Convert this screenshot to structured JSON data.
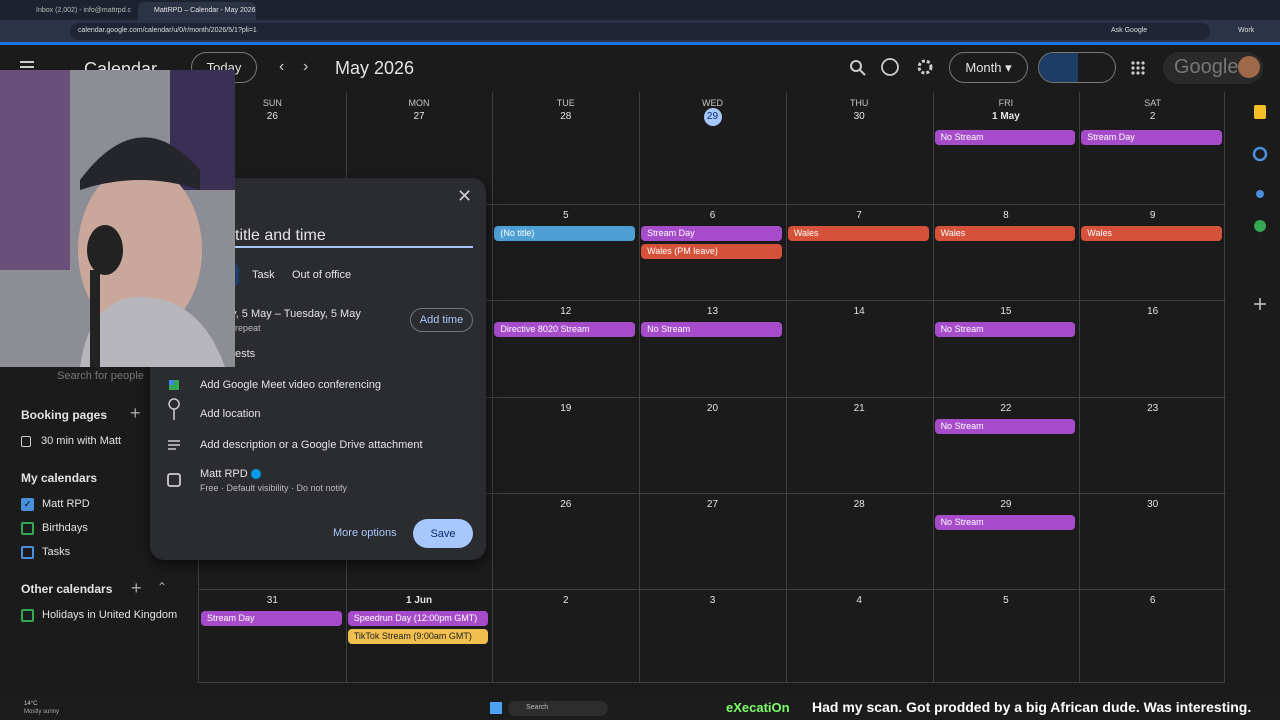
{
  "browser": {
    "tabs": [
      "Inbox (2,002) - info@mattrpd.c",
      "MattRPD – Calendar - May 2026"
    ],
    "url": "calendar.google.com/calendar/u/0/r/month/2026/5/1?pli=1",
    "ask": "Ask Google",
    "profile": "Work"
  },
  "header": {
    "app": "Calendar",
    "today": "Today",
    "period": "May 2026",
    "view": "Month",
    "brand": "Google"
  },
  "calendar": {
    "weekdays": [
      "SUN",
      "MON",
      "TUE",
      "WED",
      "THU",
      "FRI",
      "SAT"
    ],
    "weeks": [
      {
        "days": [
          {
            "label": "26",
            "events": []
          },
          {
            "label": "27",
            "events": []
          },
          {
            "label": "28",
            "events": []
          },
          {
            "label": "29",
            "today": true,
            "events": []
          },
          {
            "label": "30",
            "events": []
          },
          {
            "label": "1 May",
            "events": [
              {
                "title": "No Stream",
                "color": "#a64ccb"
              }
            ]
          },
          {
            "label": "2",
            "events": [
              {
                "title": "Stream Day",
                "color": "#a64ccb"
              }
            ]
          }
        ]
      },
      {
        "days": [
          {
            "label": null,
            "events": []
          },
          {
            "label": null,
            "events": []
          },
          {
            "label": "5",
            "events": [
              {
                "title": "(No title)",
                "color": "#4e9fd6"
              }
            ]
          },
          {
            "label": "6",
            "events": [
              {
                "title": "Stream Day",
                "color": "#a64ccb"
              },
              {
                "title": "Wales (PM leave)",
                "color": "#d6513a"
              }
            ]
          },
          {
            "label": "7",
            "events": [
              {
                "title": "Wales",
                "color": "#d6513a"
              }
            ]
          },
          {
            "label": "8",
            "events": [
              {
                "title": "Wales",
                "color": "#d6513a"
              }
            ]
          },
          {
            "label": "9",
            "events": [
              {
                "title": "Wales",
                "color": "#d6513a"
              }
            ]
          }
        ]
      },
      {
        "days": [
          {
            "label": null,
            "events": []
          },
          {
            "label": null,
            "events": []
          },
          {
            "label": "12",
            "events": [
              {
                "title": "Directive 8020 Stream",
                "color": "#a64ccb"
              }
            ]
          },
          {
            "label": "13",
            "events": [
              {
                "title": "No Stream",
                "color": "#a64ccb"
              }
            ]
          },
          {
            "label": "14",
            "events": []
          },
          {
            "label": "15",
            "events": [
              {
                "title": "No Stream",
                "color": "#a64ccb"
              }
            ]
          },
          {
            "label": "16",
            "events": []
          }
        ]
      },
      {
        "days": [
          {
            "label": null,
            "events": []
          },
          {
            "label": null,
            "events": []
          },
          {
            "label": "19",
            "events": []
          },
          {
            "label": "20",
            "events": []
          },
          {
            "label": "21",
            "events": []
          },
          {
            "label": "22",
            "events": [
              {
                "title": "No Stream",
                "color": "#a64ccb"
              }
            ]
          },
          {
            "label": "23",
            "events": []
          }
        ]
      },
      {
        "days": [
          {
            "label": null,
            "events": []
          },
          {
            "label": null,
            "events": []
          },
          {
            "label": "26",
            "events": []
          },
          {
            "label": "27",
            "events": []
          },
          {
            "label": "28",
            "events": []
          },
          {
            "label": "29",
            "events": [
              {
                "title": "No Stream",
                "color": "#a64ccb"
              }
            ]
          },
          {
            "label": "30",
            "events": []
          }
        ]
      },
      {
        "days": [
          {
            "label": "31",
            "events": [
              {
                "title": "Stream Day",
                "color": "#a64ccb"
              }
            ]
          },
          {
            "label": "1 Jun",
            "events": [
              {
                "title": "Speedrun Day (12:00pm GMT)",
                "color": "#a64ccb"
              },
              {
                "title": "TikTok Stream (9:00am GMT)",
                "color": "#efc04f"
              }
            ]
          },
          {
            "label": "2",
            "events": []
          },
          {
            "label": "3",
            "events": []
          },
          {
            "label": "4",
            "events": []
          },
          {
            "label": "5",
            "events": []
          },
          {
            "label": "6",
            "events": []
          }
        ]
      }
    ]
  },
  "sidebar": {
    "search": "Search for people",
    "booking": "Booking pages",
    "booking_item": "30 min with Matt",
    "my_calendars": "My calendars",
    "calendars": [
      {
        "name": "Matt RPD",
        "color": "#4a8fdc",
        "checked": true
      },
      {
        "name": "Birthdays",
        "color": "#34a853",
        "checked": false
      },
      {
        "name": "Tasks",
        "color": "#4a8fdc",
        "checked": false
      }
    ],
    "other_calendars": "Other calendars",
    "other": [
      {
        "name": "Holidays in United Kingdom",
        "color": "#34a853",
        "checked": false
      }
    ]
  },
  "dialog": {
    "title": "title and time",
    "tabs": [
      "Task",
      "Out of office"
    ],
    "date": "y, 5 May  –  Tuesday, 5 May",
    "repeat": "repeat",
    "add_time": "Add time",
    "guests": "ests",
    "meet": "Add Google Meet video conferencing",
    "location": "Add location",
    "description": "Add description or a Google Drive attachment",
    "calendar": "Matt RPD",
    "calendar_details": "Free · Default visibility · Do not notify",
    "more": "More options",
    "save": "Save"
  },
  "taskbar": {
    "temp": "14°C",
    "weather": "Mostly sunny",
    "search": "Search",
    "channel": "eXecatiOn",
    "ticker": "Had my scan. Got prodded by a big African dude. Was interesting."
  }
}
